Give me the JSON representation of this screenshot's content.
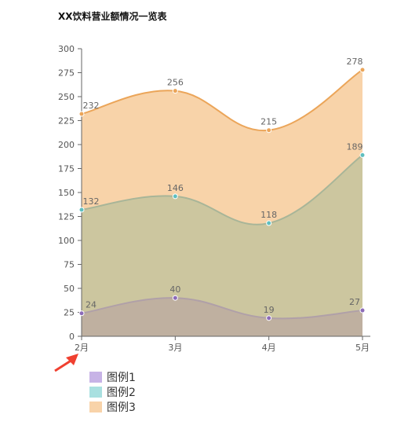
{
  "chart_data": {
    "type": "area",
    "title": "XX饮料营业额情况一览表",
    "categories": [
      "2月",
      "3月",
      "4月",
      "5月"
    ],
    "ylim": [
      0,
      300
    ],
    "yticks": [
      0,
      25,
      50,
      75,
      100,
      125,
      150,
      175,
      200,
      225,
      250,
      275,
      300
    ],
    "stacked": false,
    "smooth": true,
    "grid": false,
    "legend_position": "bottom-left",
    "series": [
      {
        "name": "图例1",
        "values": [
          24,
          40,
          19,
          27
        ],
        "fill": "#bfb0a0",
        "stroke": "#b0a0a8",
        "point": "#8c6bb8",
        "legend_color": "#c7b3e6"
      },
      {
        "name": "图例2",
        "values": [
          132,
          146,
          118,
          189
        ],
        "fill": "#ccc69f",
        "stroke": "#a8b598",
        "point": "#5fbfbf",
        "legend_color": "#a9e0e0"
      },
      {
        "name": "图例3",
        "values": [
          232,
          256,
          215,
          278
        ],
        "fill": "#f8d3a9",
        "stroke": "#eba559",
        "point": "#eba559",
        "legend_color": "#f8d3a9"
      }
    ],
    "annotation": {
      "type": "arrow",
      "color": "#f04030",
      "points_to": "2月"
    }
  }
}
